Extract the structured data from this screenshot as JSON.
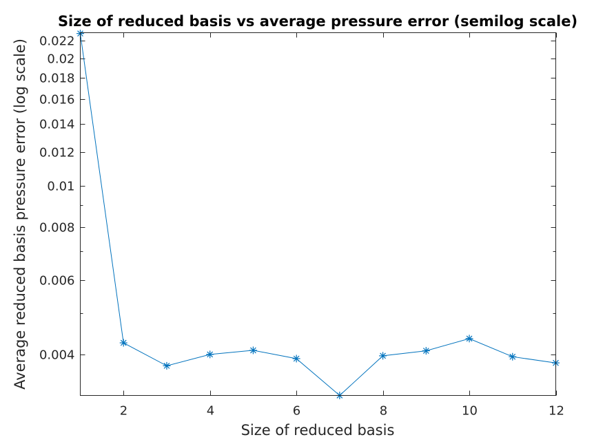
{
  "chart_data": {
    "type": "line",
    "title": "Size of reduced basis vs average pressure error (semilog scale)",
    "xlabel": "Size of reduced basis",
    "ylabel": "Average reduced basis pressure error (log scale)",
    "xlim": [
      1,
      12
    ],
    "ylim": [
      0.0032,
      0.023
    ],
    "yscale": "log",
    "grid": false,
    "marker": "asterisk",
    "color": "#0072BD",
    "x_ticks": [
      2,
      4,
      6,
      8,
      10,
      12
    ],
    "x_tick_labels": [
      "2",
      "4",
      "6",
      "8",
      "10",
      "12"
    ],
    "y_ticks": [
      0.004,
      0.006,
      0.008,
      0.01,
      0.012,
      0.014,
      0.016,
      0.018,
      0.02,
      0.022
    ],
    "y_tick_labels": [
      "0.004",
      "0.006",
      "0.008",
      "0.01",
      "0.012",
      "0.014",
      "0.016",
      "0.018",
      "0.02",
      "0.022"
    ],
    "x": [
      1,
      2,
      3,
      4,
      5,
      6,
      7,
      8,
      9,
      10,
      11,
      12
    ],
    "values": [
      0.0229,
      0.00426,
      0.00376,
      0.004,
      0.00409,
      0.00391,
      0.0032,
      0.00397,
      0.00408,
      0.00436,
      0.00395,
      0.00382
    ]
  }
}
